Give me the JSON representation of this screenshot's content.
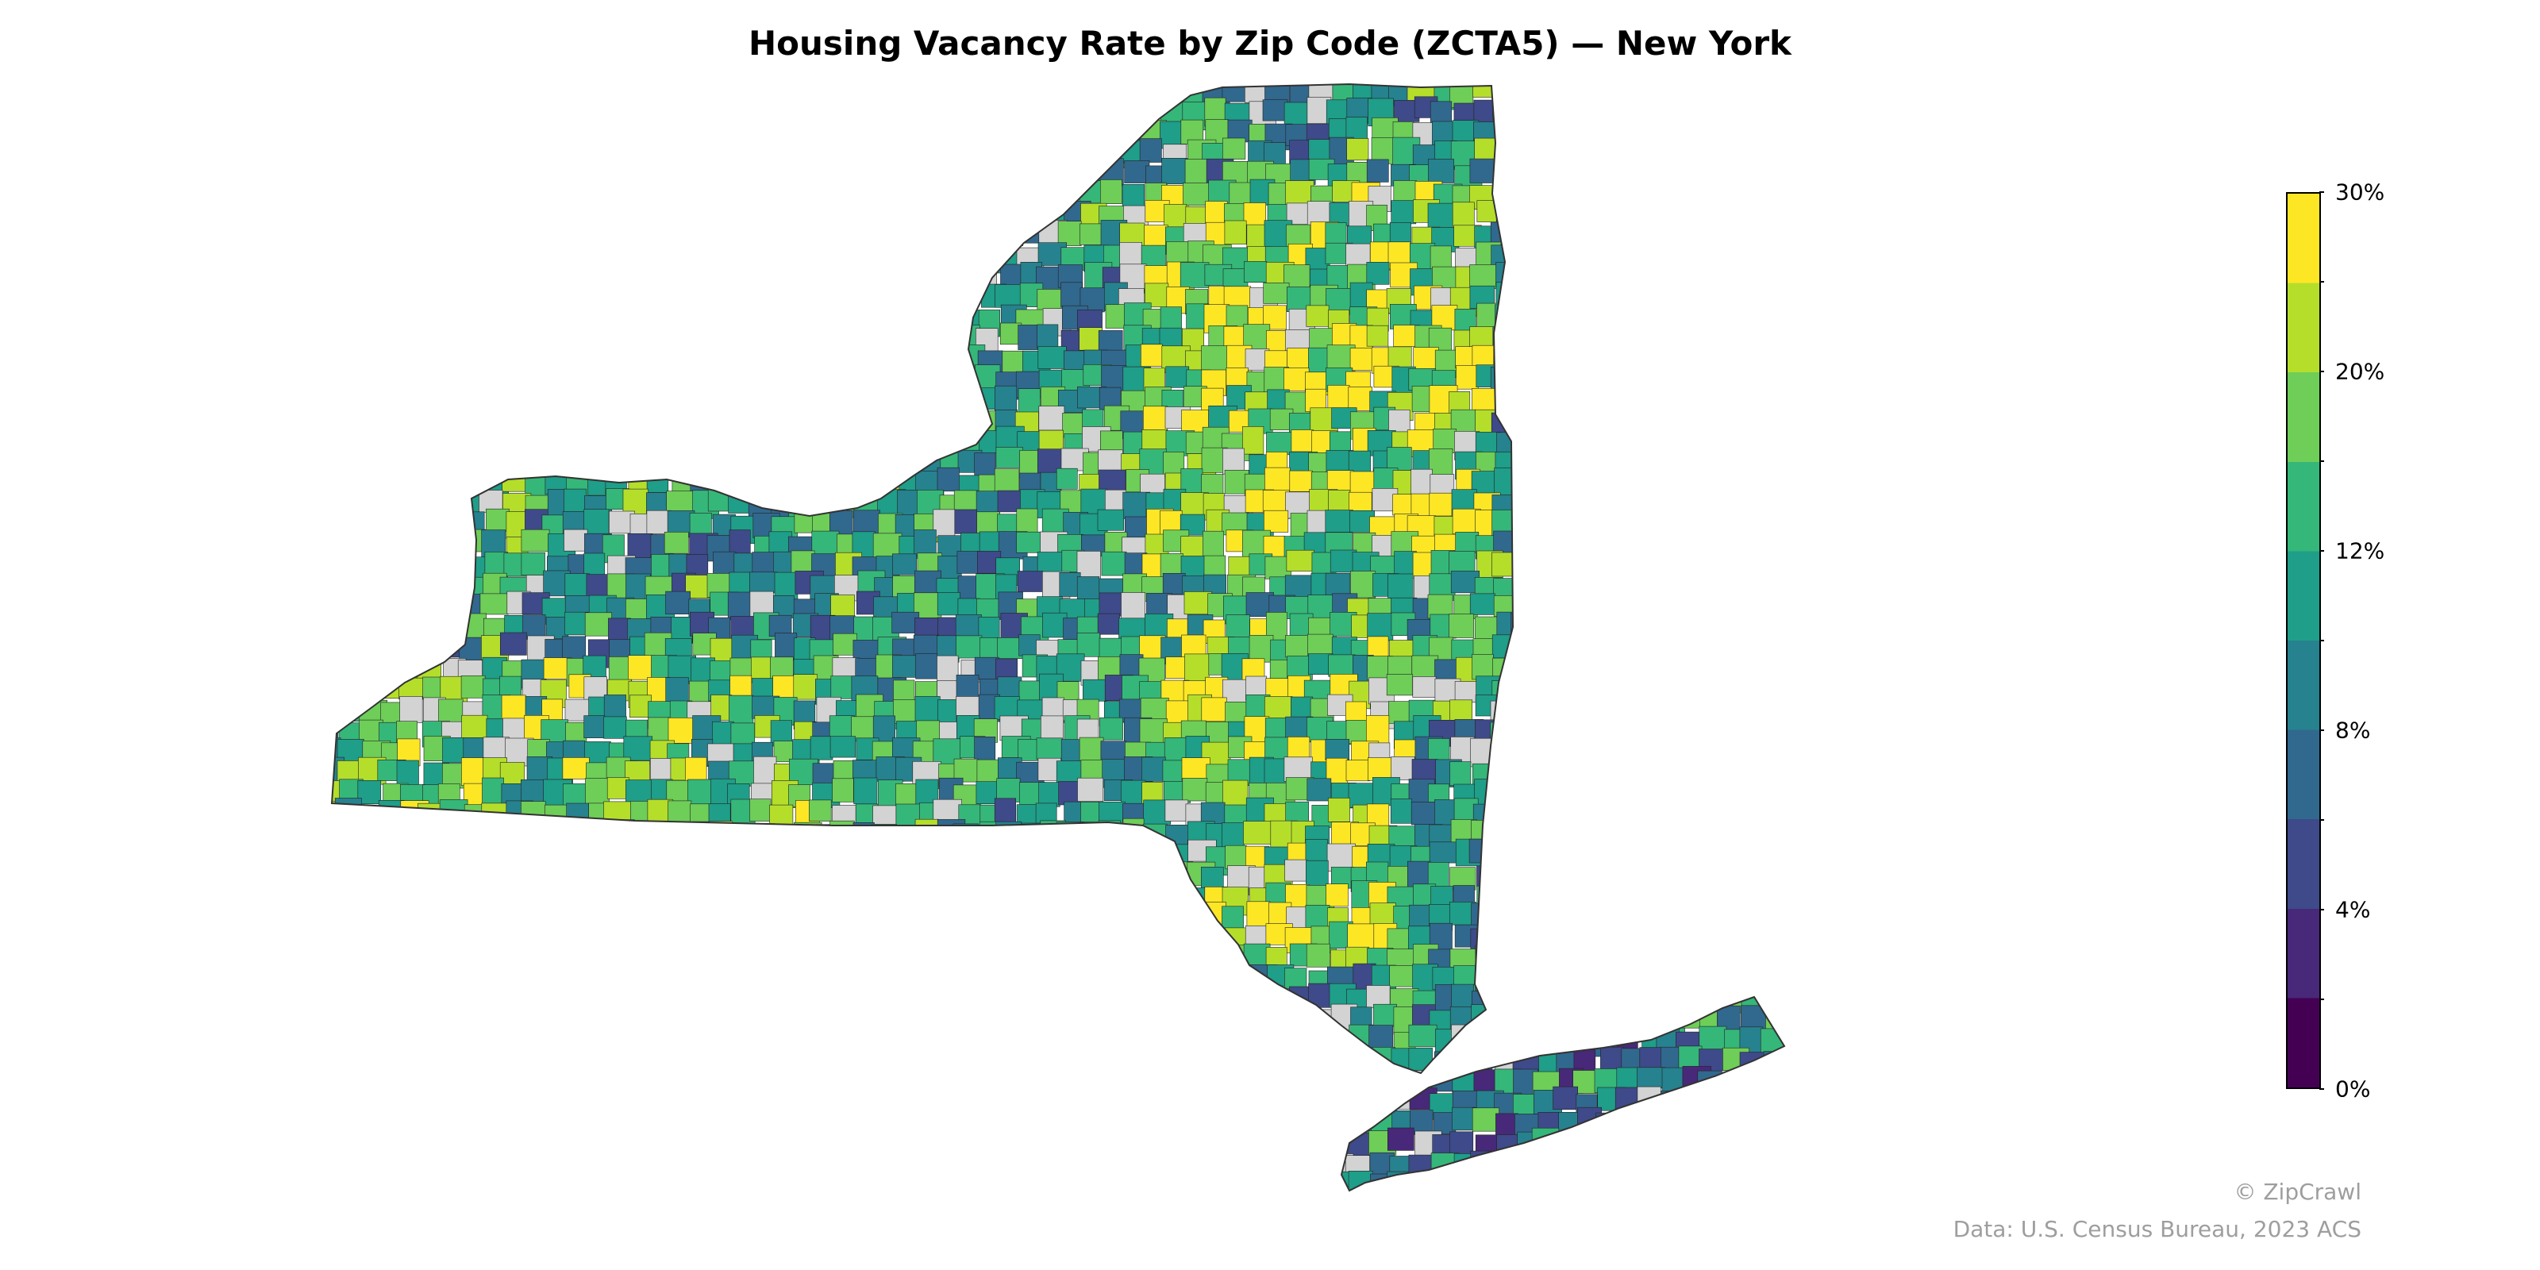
{
  "title": "Housing Vacancy Rate by Zip Code (ZCTA5) — New York",
  "legend": {
    "ticks": [
      "0%",
      "4%",
      "8%",
      "12%",
      "20%",
      "30%"
    ],
    "tick_values": [
      0,
      4,
      8,
      12,
      20,
      30
    ],
    "bins": [
      0,
      2,
      4,
      6,
      8,
      10,
      12,
      15,
      20,
      25,
      30
    ],
    "colors": [
      "#440154",
      "#482878",
      "#3e4a89",
      "#31688e",
      "#26828e",
      "#1f9e89",
      "#35b779",
      "#6ece58",
      "#b5de2b",
      "#fde725"
    ],
    "missing_color": "#d3d3d3"
  },
  "credit": "© ZipCrawl",
  "source": "Data: U.S. Census Bureau, 2023 ACS",
  "chart_data": {
    "type": "heatmap",
    "title": "Housing Vacancy Rate by Zip Code (ZCTA5) — New York",
    "value_range": [
      0,
      30
    ],
    "unit": "%"
  }
}
